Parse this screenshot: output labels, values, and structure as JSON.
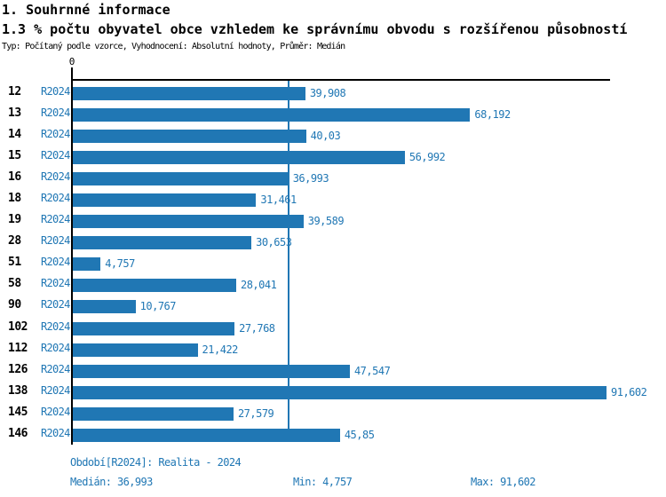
{
  "header": {
    "title": "1. Souhrnné informace",
    "subtitle": "1.3 % počtu obyvatel obce vzhledem ke správnímu obvodu s rozšířenou působností",
    "meta": "Typ: Počítaný podle vzorce, Vyhodnocení: Absolutní hodnoty, Průměr: Medián"
  },
  "chart_data": {
    "type": "bar",
    "orientation": "horizontal",
    "title": "1.3 % počtu obyvatel obce vzhledem ke správnímu obvodu s rozšířenou působností",
    "series_label": "R2024",
    "origin_tick_label": "0",
    "categories": [
      "12",
      "13",
      "14",
      "15",
      "16",
      "18",
      "19",
      "28",
      "51",
      "58",
      "90",
      "102",
      "112",
      "126",
      "138",
      "145",
      "146"
    ],
    "values": [
      39.908,
      68.192,
      40.03,
      56.992,
      36.993,
      31.461,
      39.589,
      30.653,
      4.757,
      28.041,
      10.767,
      27.768,
      21.422,
      47.547,
      91.602,
      27.579,
      45.85
    ],
    "value_labels": [
      "39,908",
      "68,192",
      "40,03",
      "56,992",
      "36,993",
      "31,461",
      "39,589",
      "30,653",
      "4,757",
      "28,041",
      "10,767",
      "27,768",
      "21,422",
      "47,547",
      "91,602",
      "27,579",
      "45,85"
    ],
    "xlim": [
      0,
      92.4
    ],
    "median_value": 36.993,
    "grid": false,
    "legend_position": "none",
    "bar_color": "#2077b4",
    "median_line_color": "#2077b4"
  },
  "footer": {
    "period": "Období[R2024]: Realita - 2024",
    "median": "Medián: 36,993",
    "min": "Min: 4,757",
    "max": "Max: 91,602"
  }
}
